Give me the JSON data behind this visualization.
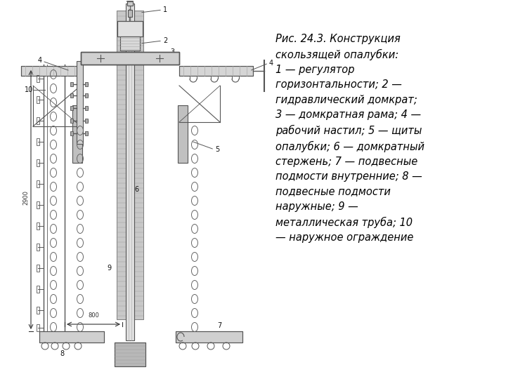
{
  "caption_text": "Рис. 24.3. Конструкция\nскользящей опалубки:\n1 — регулятор\nгоризонтальности; 2 —\nгидравлический домкрат;\n3 — домкратная рама; 4 —\nрабочий настил; 5 — щиты\nопалубки; 6 — домкратный\nстержень; 7 — подвесные\nподмости внутренние; 8 —\nподвесные подмости\nнаружные; 9 —\nметаллическая труба; 10\n— наружное ограждение",
  "bg_color": "#ffffff",
  "text_color": "#000000",
  "line_color": "#555555",
  "dim_color": "#333333",
  "fill_color": "#cccccc",
  "font_size_caption": 10.5
}
